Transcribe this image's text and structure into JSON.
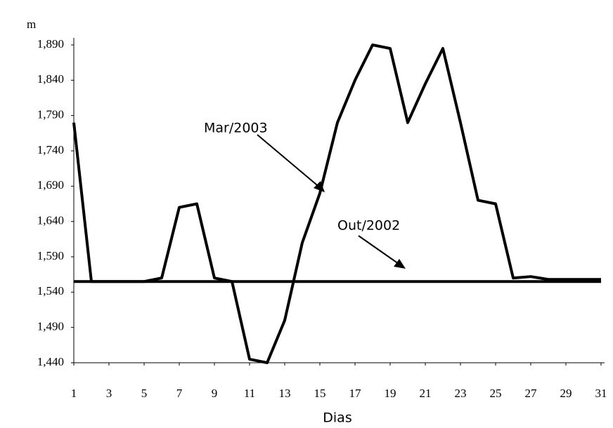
{
  "chart_data": {
    "type": "line",
    "y_axis_unit": "m",
    "x_label": "Dias",
    "x": [
      1,
      2,
      3,
      4,
      5,
      6,
      7,
      8,
      9,
      10,
      11,
      12,
      13,
      14,
      15,
      16,
      17,
      18,
      19,
      20,
      21,
      22,
      23,
      24,
      25,
      26,
      27,
      28,
      29,
      30,
      31
    ],
    "series": [
      {
        "name": "Mar/2003",
        "color": "#000000",
        "values": [
          1.78,
          1.555,
          1.555,
          1.555,
          1.555,
          1.56,
          1.66,
          1.665,
          1.56,
          1.555,
          1.445,
          1.44,
          1.5,
          1.61,
          1.68,
          1.78,
          1.84,
          1.89,
          1.885,
          1.78,
          1.835,
          1.885,
          1.78,
          1.67,
          1.665,
          1.56,
          1.562,
          1.558,
          1.558,
          1.558,
          1.558
        ]
      },
      {
        "name": "Out/2002",
        "color": "#000000",
        "values": [
          1.555,
          1.555,
          1.555,
          1.555,
          1.555,
          1.555,
          1.555,
          1.555,
          1.555,
          1.555,
          1.555,
          1.555,
          1.555,
          1.555,
          1.555,
          1.555,
          1.555,
          1.555,
          1.555,
          1.555,
          1.555,
          1.555,
          1.555,
          1.555,
          1.555,
          1.555,
          1.555,
          1.555,
          1.555,
          1.555,
          1.555
        ]
      }
    ],
    "xlim": [
      1,
      31
    ],
    "xticks": [
      1,
      3,
      5,
      7,
      9,
      11,
      13,
      15,
      17,
      19,
      21,
      23,
      25,
      27,
      29,
      31
    ],
    "ylim": [
      1.44,
      1.89
    ],
    "yticks": [
      {
        "value": 1.44,
        "label": "1,440"
      },
      {
        "value": 1.49,
        "label": "1,490"
      },
      {
        "value": 1.54,
        "label": "1,540"
      },
      {
        "value": 1.59,
        "label": "1,590"
      },
      {
        "value": 1.64,
        "label": "1,640"
      },
      {
        "value": 1.69,
        "label": "1,690"
      },
      {
        "value": 1.74,
        "label": "1,740"
      },
      {
        "value": 1.79,
        "label": "1,790"
      },
      {
        "value": 1.84,
        "label": "1,840"
      },
      {
        "value": 1.89,
        "label": "1,890"
      }
    ],
    "grid": false
  }
}
